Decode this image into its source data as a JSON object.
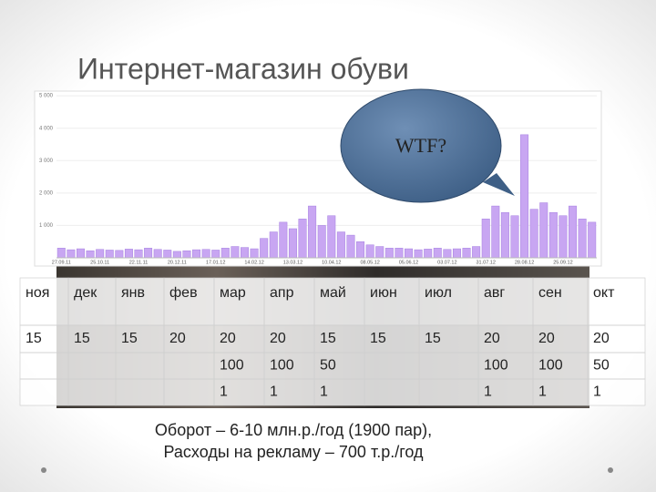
{
  "header": {
    "title": "Интернет-магазин обуви"
  },
  "chart_data": {
    "type": "bar",
    "categories": [
      "27.09.11",
      null,
      null,
      null,
      "25.10.11",
      null,
      null,
      null,
      "22.11.11",
      null,
      null,
      null,
      "20.12.11",
      null,
      null,
      null,
      "17.01.12",
      null,
      null,
      null,
      "14.02.12",
      null,
      null,
      null,
      "13.03.12",
      null,
      null,
      null,
      "10.04.12",
      null,
      null,
      null,
      "08.05.12",
      null,
      null,
      null,
      "05.06.12",
      null,
      null,
      null,
      "03.07.12",
      null,
      null,
      null,
      "31.07.12",
      null,
      null,
      null,
      "28.08.12",
      null,
      null,
      null,
      "25.09.12",
      null,
      null,
      null
    ],
    "values": [
      300,
      250,
      280,
      220,
      260,
      240,
      230,
      270,
      250,
      300,
      260,
      240,
      200,
      220,
      250,
      260,
      240,
      300,
      350,
      320,
      280,
      600,
      800,
      1100,
      900,
      1200,
      1600,
      1000,
      1300,
      800,
      700,
      500,
      400,
      350,
      300,
      300,
      280,
      250,
      270,
      300,
      260,
      280,
      300,
      350,
      1200,
      1600,
      1400,
      1300,
      3800,
      1500,
      1700,
      1400,
      1300,
      1600,
      1200,
      1100
    ],
    "color": "#c8a6f2",
    "ylim": [
      0,
      5100
    ],
    "yticks": [
      {
        "value": 1000,
        "label": "1 000"
      },
      {
        "value": 2000,
        "label": "2 000"
      },
      {
        "value": 3000,
        "label": "3 000"
      },
      {
        "value": 4000,
        "label": "4 000"
      },
      {
        "value": 5000,
        "label": "5 000"
      }
    ],
    "grid": true
  },
  "callout": {
    "text": "WTF?"
  },
  "table": {
    "columns": [
      "ноя",
      "дек",
      "янв",
      "фев",
      "мар",
      "апр",
      "май",
      "июн",
      "июл",
      "авг",
      "сен",
      "окт"
    ],
    "rows": [
      [
        15,
        15,
        15,
        20,
        20,
        20,
        15,
        15,
        15,
        20,
        20,
        20
      ],
      [
        null,
        null,
        null,
        null,
        100,
        100,
        50,
        null,
        null,
        100,
        100,
        50
      ],
      [
        null,
        null,
        null,
        null,
        1,
        1,
        1,
        null,
        null,
        1,
        1,
        1
      ]
    ]
  },
  "footer": {
    "lines": [
      "Оборот – 6-10 млн.р./год (1900 пар),",
      "Расходы на рекламу – 700 т.р./год"
    ]
  }
}
